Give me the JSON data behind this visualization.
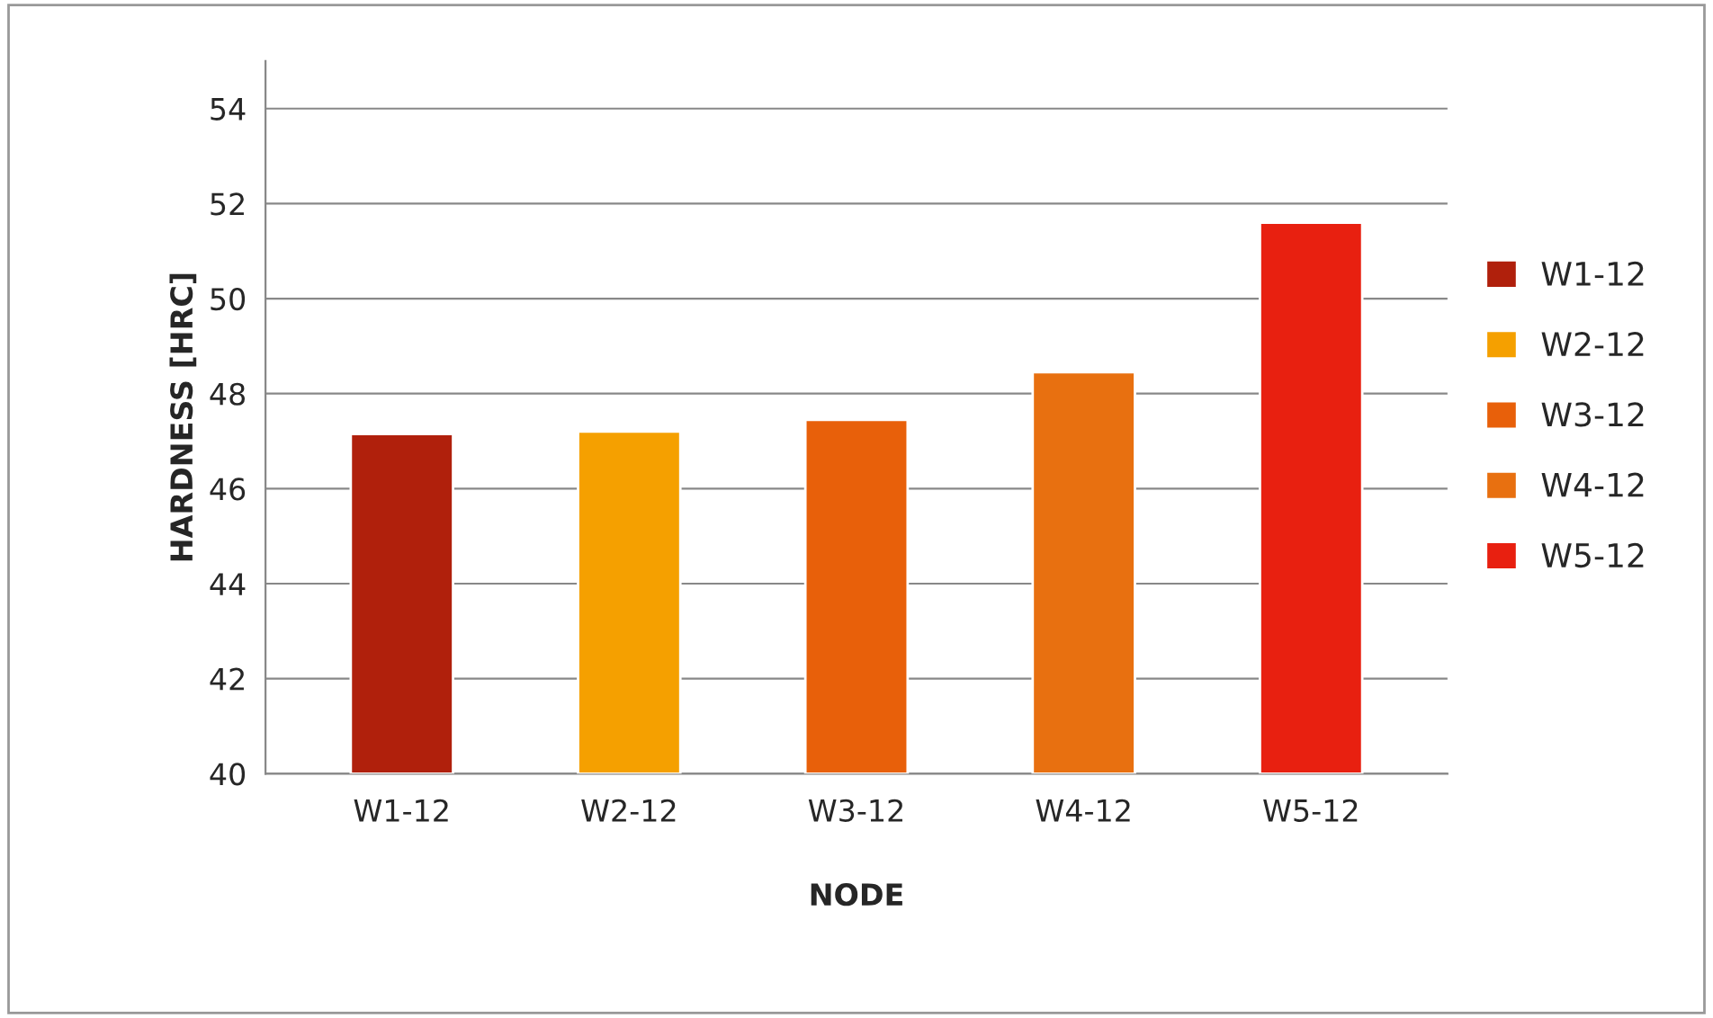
{
  "chart_data": {
    "type": "bar",
    "xlabel": "NODE",
    "ylabel": "HARDNESS [HRC]",
    "categories": [
      "W1-12",
      "W2-12",
      "W3-12",
      "W4-12",
      "W5-12"
    ],
    "series": [
      {
        "name": "W1-12",
        "color": "#b0200c",
        "values": [
          47.15,
          null,
          null,
          null,
          null
        ]
      },
      {
        "name": "W2-12",
        "color": "#f5a000",
        "values": [
          null,
          47.2,
          null,
          null,
          null
        ]
      },
      {
        "name": "W3-12",
        "color": "#e8600a",
        "values": [
          null,
          null,
          47.45,
          null,
          null
        ]
      },
      {
        "name": "W4-12",
        "color": "#e87010",
        "values": [
          null,
          null,
          null,
          48.45,
          null
        ]
      },
      {
        "name": "W5-12",
        "color": "#e82010",
        "values": [
          null,
          null,
          null,
          null,
          51.6
        ]
      }
    ],
    "ylim": [
      40,
      55
    ],
    "yticks": [
      40,
      42,
      44,
      46,
      48,
      50,
      52,
      54
    ],
    "grid": "y",
    "legend": "right"
  }
}
